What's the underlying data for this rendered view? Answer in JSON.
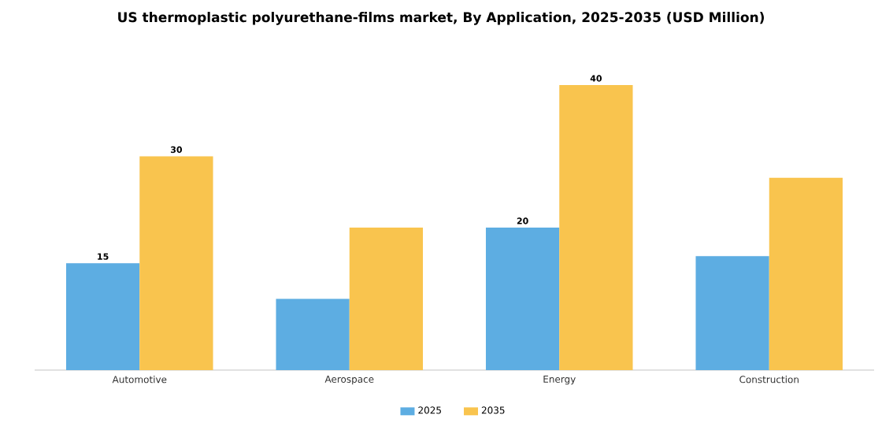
{
  "chart_data": {
    "type": "bar",
    "title": "US thermoplastic polyurethane-films market, By Application, 2025-2035 (USD Million)",
    "categories": [
      "Automotive",
      "Aerospace",
      "Energy",
      "Construction"
    ],
    "series": [
      {
        "name": "2025",
        "color": "#5dade2",
        "values": [
          15,
          10,
          20,
          16
        ],
        "value_labels": [
          "15",
          null,
          "20",
          null
        ]
      },
      {
        "name": "2035",
        "color": "#f9c44e",
        "values": [
          30,
          20,
          40,
          27
        ],
        "value_labels": [
          "30",
          null,
          "40",
          null
        ]
      }
    ],
    "tick_labels": "x",
    "grid": false,
    "legend": "bottom"
  }
}
